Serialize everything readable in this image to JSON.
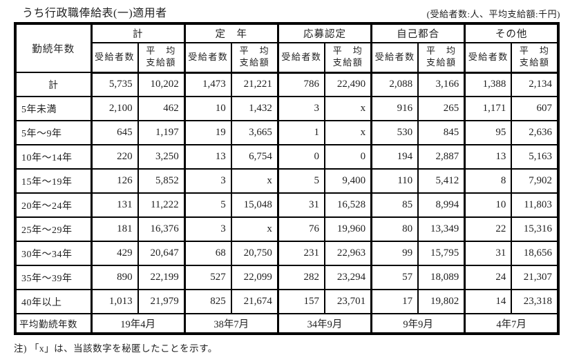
{
  "title": "うち行政職俸給表(一)適用者",
  "unit_note": "(受給者数:人、平均支給額:千円)",
  "table": {
    "corner_header": "勤続年数",
    "groups": [
      {
        "label": "計"
      },
      {
        "label": "定　年"
      },
      {
        "label": "応募認定"
      },
      {
        "label": "自己都合"
      },
      {
        "label": "その他"
      }
    ],
    "sub_recipients": "受給者数",
    "sub_average": "平　均\n支給額",
    "rows": [
      {
        "label": "計",
        "values": [
          "5,735",
          "10,202",
          "1,473",
          "21,221",
          "786",
          "22,490",
          "2,088",
          "3,166",
          "1,388",
          "2,134"
        ]
      },
      {
        "label": "5年未満",
        "values": [
          "2,100",
          "462",
          "10",
          "1,432",
          "3",
          "x",
          "916",
          "265",
          "1,171",
          "607"
        ]
      },
      {
        "label": "5年～9年",
        "values": [
          "645",
          "1,197",
          "19",
          "3,665",
          "1",
          "x",
          "530",
          "845",
          "95",
          "2,636"
        ]
      },
      {
        "label": "10年～14年",
        "values": [
          "220",
          "3,250",
          "13",
          "6,754",
          "0",
          "0",
          "194",
          "2,887",
          "13",
          "5,163"
        ]
      },
      {
        "label": "15年～19年",
        "values": [
          "126",
          "5,852",
          "3",
          "x",
          "5",
          "9,400",
          "110",
          "5,412",
          "8",
          "7,902"
        ]
      },
      {
        "label": "20年～24年",
        "values": [
          "131",
          "11,222",
          "5",
          "15,048",
          "31",
          "16,528",
          "85",
          "8,994",
          "10",
          "11,803"
        ]
      },
      {
        "label": "25年～29年",
        "values": [
          "181",
          "16,376",
          "3",
          "x",
          "76",
          "19,960",
          "80",
          "13,349",
          "22",
          "15,316"
        ]
      },
      {
        "label": "30年～34年",
        "values": [
          "429",
          "20,647",
          "68",
          "20,750",
          "231",
          "22,963",
          "99",
          "15,795",
          "31",
          "18,656"
        ]
      },
      {
        "label": "35年～39年",
        "values": [
          "890",
          "22,199",
          "527",
          "22,099",
          "282",
          "23,294",
          "57",
          "18,089",
          "24",
          "21,307"
        ]
      },
      {
        "label": "40年以上",
        "values": [
          "1,013",
          "21,979",
          "825",
          "21,674",
          "157",
          "23,701",
          "17",
          "19,802",
          "14",
          "23,318"
        ]
      }
    ],
    "footer_row": {
      "label": "平均勤続年数",
      "values": [
        "19年4月",
        "38年7月",
        "34年9月",
        "9年9月",
        "4年7月"
      ]
    }
  },
  "footnote": "注)  「x」は、当該数字を秘匿したことを示す。"
}
